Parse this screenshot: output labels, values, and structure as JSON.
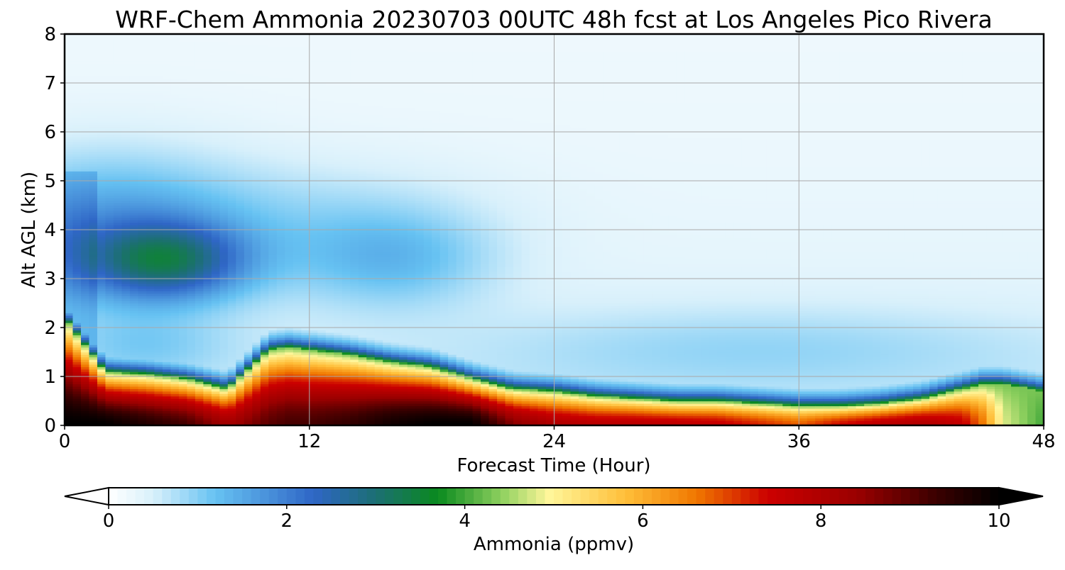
{
  "chart_data": {
    "type": "heatmap",
    "title": "WRF-Chem Ammonia  20230703 00UTC 48h fcst at Los Angeles Pico Rivera",
    "xlabel": "Forecast Time (Hour)",
    "ylabel": "Alt AGL (km)",
    "xlim": [
      0,
      48
    ],
    "ylim": [
      0,
      8
    ],
    "xticks": [
      0,
      12,
      24,
      36,
      48
    ],
    "yticks": [
      0,
      1,
      2,
      3,
      4,
      5,
      6,
      7,
      8
    ],
    "grid": true,
    "colorbar": {
      "label": "Ammonia  (ppmv)",
      "range": [
        0,
        10
      ],
      "ticks": [
        0,
        2,
        4,
        6,
        8,
        10
      ],
      "extend": "both",
      "stops": [
        {
          "v": 0.0,
          "c": "#ffffff"
        },
        {
          "v": 0.5,
          "c": "#d8f0fb"
        },
        {
          "v": 1.2,
          "c": "#66c2f2"
        },
        {
          "v": 2.3,
          "c": "#2f66c6"
        },
        {
          "v": 3.0,
          "c": "#1c6f73"
        },
        {
          "v": 3.7,
          "c": "#0a8a1e"
        },
        {
          "v": 4.4,
          "c": "#8ccf5e"
        },
        {
          "v": 4.95,
          "c": "#fff69a"
        },
        {
          "v": 5.8,
          "c": "#ffbf3a"
        },
        {
          "v": 6.6,
          "c": "#f07800"
        },
        {
          "v": 7.4,
          "c": "#cc0000"
        },
        {
          "v": 8.4,
          "c": "#9b0000"
        },
        {
          "v": 9.3,
          "c": "#3a0000"
        },
        {
          "v": 10.0,
          "c": "#000000"
        }
      ]
    },
    "field": {
      "description_free": true,
      "hours": [
        0,
        2,
        4,
        6,
        8,
        10,
        11,
        12,
        14,
        16,
        18,
        20,
        22,
        24,
        26,
        28,
        30,
        32,
        34,
        36,
        38,
        40,
        42,
        44,
        45,
        46,
        48
      ],
      "boundary_top_km": [
        2.2,
        1.1,
        1.05,
        0.95,
        0.75,
        1.55,
        1.6,
        1.55,
        1.45,
        1.3,
        1.2,
        0.95,
        0.75,
        0.7,
        0.6,
        0.55,
        0.5,
        0.5,
        0.45,
        0.4,
        0.4,
        0.45,
        0.55,
        0.75,
        0.85,
        0.85,
        0.7
      ],
      "surface_peak_ppmv": [
        10,
        10,
        9.6,
        9.2,
        8.2,
        9.0,
        9.2,
        9.2,
        9.4,
        9.8,
        10,
        10,
        8.6,
        8.0,
        7.8,
        7.8,
        7.7,
        7.6,
        7.2,
        6.8,
        7.4,
        7.8,
        8.0,
        7.6,
        6.6,
        4.8,
        4.0
      ],
      "aloft_max": {
        "hour": 5,
        "alt_km": 3.35,
        "ppmv": 3.7
      }
    }
  }
}
